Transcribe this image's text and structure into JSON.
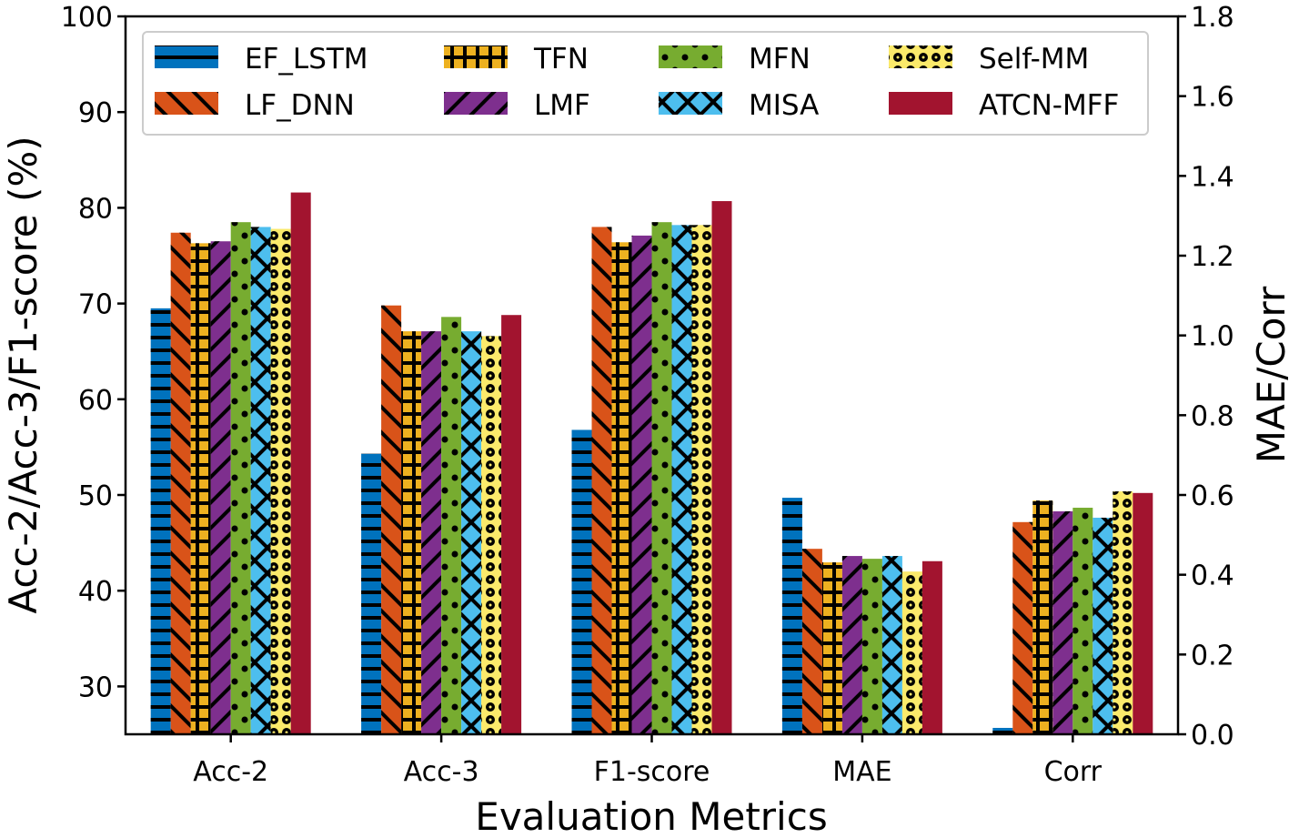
{
  "chart_data": {
    "type": "bar",
    "xlabel": "Evaluation Metrics",
    "ylabel": "Acc-2/Acc-3/F1-score (%)",
    "ylabel_right": "MAE/Corr",
    "categories": [
      "Acc-2",
      "Acc-3",
      "F1-score",
      "MAE",
      "Corr"
    ],
    "left_axis_categories": [
      "Acc-2",
      "Acc-3",
      "F1-score"
    ],
    "right_axis_categories": [
      "MAE",
      "Corr"
    ],
    "ylim": [
      25,
      100
    ],
    "ylim_right": [
      0,
      1.8
    ],
    "yticks": [
      "30",
      "40",
      "50",
      "60",
      "70",
      "80",
      "90",
      "100"
    ],
    "yticks_right": [
      "0.0",
      "0.2",
      "0.4",
      "0.6",
      "0.8",
      "1.0",
      "1.2",
      "1.4",
      "1.6",
      "1.8"
    ],
    "grid": false,
    "legend_position": "top",
    "series": [
      {
        "name": "EF_LSTM",
        "color": "#0072BD",
        "hatch": "horizontal",
        "values": [
          69.5,
          54.3,
          56.8,
          0.593,
          0.016
        ]
      },
      {
        "name": "LF_DNN",
        "color": "#D95319",
        "hatch": "backslash",
        "values": [
          77.4,
          69.8,
          78.0,
          0.465,
          0.532
        ]
      },
      {
        "name": "TFN",
        "color": "#EDB120",
        "hatch": "plus",
        "values": [
          76.3,
          67.1,
          76.4,
          0.431,
          0.586
        ]
      },
      {
        "name": "LMF",
        "color": "#7E2F8E",
        "hatch": "slash",
        "values": [
          76.5,
          67.1,
          77.1,
          0.447,
          0.559
        ]
      },
      {
        "name": "MFN",
        "color": "#77AC30",
        "hatch": "dots",
        "values": [
          78.5,
          68.6,
          78.5,
          0.44,
          0.568
        ]
      },
      {
        "name": "MISA",
        "color": "#4DBEEE",
        "hatch": "cross",
        "values": [
          78.0,
          67.1,
          78.2,
          0.447,
          0.543
        ]
      },
      {
        "name": "Self-MM",
        "color": "#FBEA6B",
        "hatch": "rings",
        "values": [
          77.8,
          66.6,
          78.2,
          0.408,
          0.609
        ]
      },
      {
        "name": "ATCN-MFF",
        "color": "#A2142F",
        "hatch": "none",
        "values": [
          81.6,
          68.8,
          80.7,
          0.434,
          0.605
        ]
      }
    ]
  }
}
